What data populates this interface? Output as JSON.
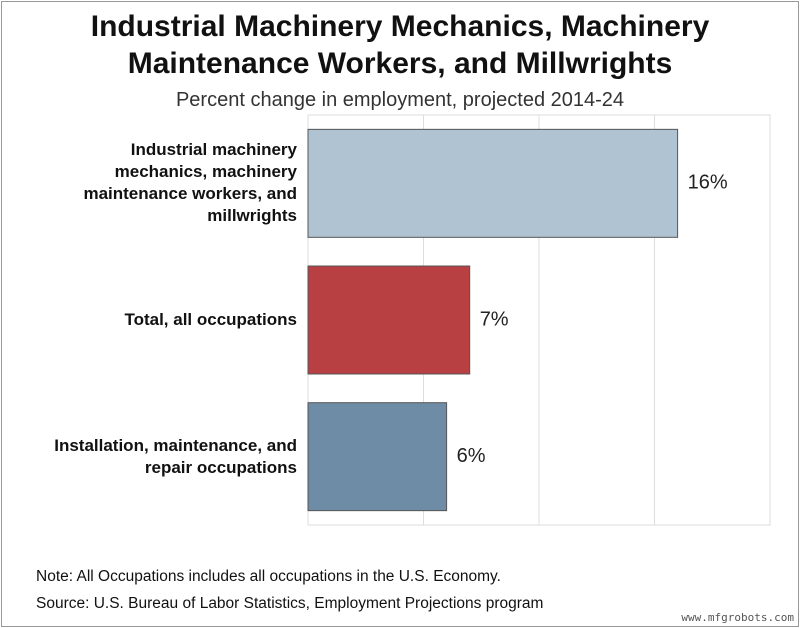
{
  "chart_data": {
    "type": "bar",
    "orientation": "horizontal",
    "title": "Industrial Machinery Mechanics, Machinery Maintenance Workers, and Millwrights",
    "subtitle": "Percent change in employment, projected 2014-24",
    "categories": [
      "Industrial machinery mechanics, machinery maintenance workers, and millwrights",
      "Total, all occupations",
      "Installation, maintenance, and repair occupations"
    ],
    "values": [
      16,
      7,
      6
    ],
    "value_labels": [
      "16%",
      "7%",
      "6%"
    ],
    "colors": [
      "#b0c3d3",
      "#b84042",
      "#6e8ca5"
    ],
    "xlim": [
      0,
      20
    ],
    "xticks": [
      0,
      5,
      10,
      15,
      20
    ],
    "grid": true,
    "notes": [
      "Note: All Occupations includes all occupations in the U.S. Economy.",
      "Source: U.S. Bureau of Labor Statistics, Employment Projections program"
    ],
    "watermark": "www.mfgrobots.com"
  }
}
